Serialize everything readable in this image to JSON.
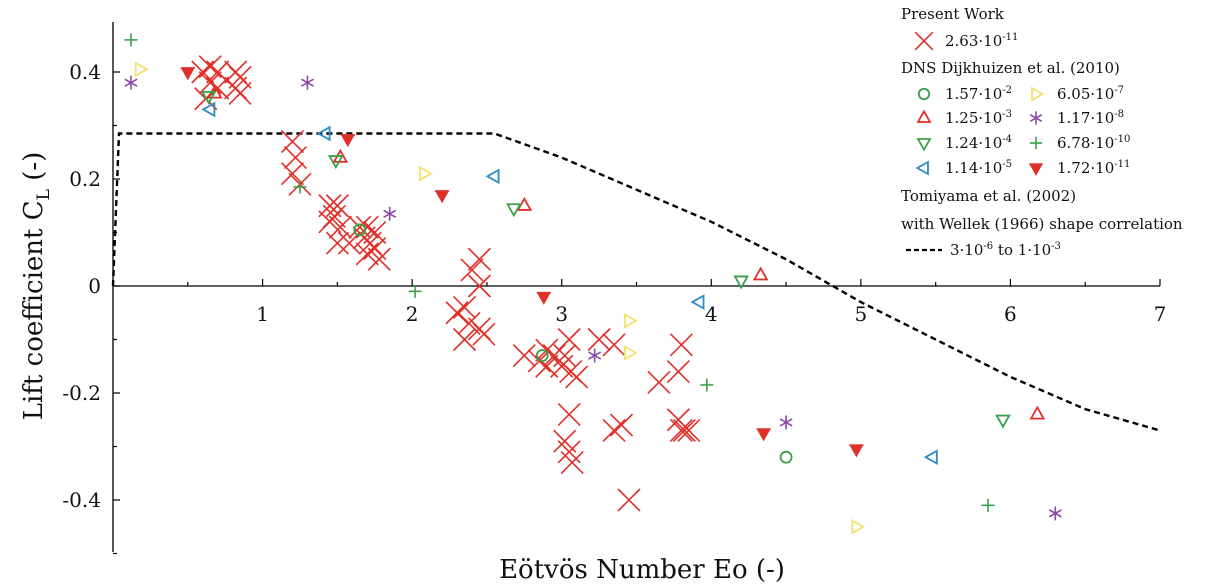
{
  "chart_data": {
    "type": "scatter",
    "xlabel": "Eötvös Number Eo (-)",
    "ylabel": "Lift coefficient C",
    "ylabel_subscript": "L",
    "ylabel_suffix": " (-)",
    "xlim": [
      0,
      7
    ],
    "ylim": [
      -0.5,
      0.5
    ],
    "x_ticks": [
      1,
      2,
      3,
      4,
      5,
      6,
      7
    ],
    "x_tick_labels": [
      "1",
      "2",
      "3",
      "4",
      "5",
      "6",
      "7"
    ],
    "y_ticks": [
      0.4,
      0.2,
      0,
      -0.2,
      -0.4
    ],
    "y_tick_labels": [
      "0.4",
      "0.2",
      "0",
      "-0.2",
      "-0.4"
    ],
    "grid": false,
    "legend_position": "top-right",
    "legend_groups": [
      {
        "title": "Present Work"
      },
      {
        "title": "DNS Dijkhuizen et al. (2010)"
      },
      {
        "title": "Tomiyama et al. (2002)",
        "subtitle": "with Wellek (1966) shape correlation"
      }
    ],
    "series": [
      {
        "name": "2.63·10",
        "exp": "-11",
        "group": 0,
        "marker": "x",
        "color": "#e0302a",
        "points": [
          [
            0.6,
            0.4
          ],
          [
            0.65,
            0.41
          ],
          [
            0.7,
            0.4
          ],
          [
            0.82,
            0.4
          ],
          [
            0.85,
            0.39
          ],
          [
            0.65,
            0.38
          ],
          [
            0.7,
            0.37
          ],
          [
            0.82,
            0.37
          ],
          [
            0.85,
            0.36
          ],
          [
            0.62,
            0.35
          ],
          [
            1.2,
            0.27
          ],
          [
            1.22,
            0.24
          ],
          [
            1.2,
            0.21
          ],
          [
            1.25,
            0.19
          ],
          [
            1.45,
            0.15
          ],
          [
            1.5,
            0.15
          ],
          [
            1.48,
            0.13
          ],
          [
            1.45,
            0.12
          ],
          [
            1.52,
            0.11
          ],
          [
            1.65,
            0.11
          ],
          [
            1.7,
            0.11
          ],
          [
            1.75,
            0.1
          ],
          [
            1.68,
            0.09
          ],
          [
            1.72,
            0.08
          ],
          [
            1.75,
            0.07
          ],
          [
            1.7,
            0.06
          ],
          [
            1.78,
            0.05
          ],
          [
            1.5,
            0.08
          ],
          [
            1.58,
            0.08
          ],
          [
            2.45,
            0.05
          ],
          [
            2.4,
            0.03
          ],
          [
            2.45,
            0.0
          ],
          [
            2.35,
            -0.04
          ],
          [
            2.3,
            -0.05
          ],
          [
            2.38,
            -0.07
          ],
          [
            2.45,
            -0.08
          ],
          [
            2.48,
            -0.09
          ],
          [
            2.35,
            -0.1
          ],
          [
            2.75,
            -0.13
          ],
          [
            2.85,
            -0.14
          ],
          [
            2.9,
            -0.15
          ],
          [
            2.95,
            -0.13
          ],
          [
            3.0,
            -0.15
          ],
          [
            3.05,
            -0.1
          ],
          [
            3.02,
            -0.13
          ],
          [
            3.06,
            -0.16
          ],
          [
            3.1,
            -0.17
          ],
          [
            2.9,
            -0.12
          ],
          [
            3.05,
            -0.24
          ],
          [
            3.02,
            -0.29
          ],
          [
            3.05,
            -0.31
          ],
          [
            3.07,
            -0.33
          ],
          [
            3.25,
            -0.1
          ],
          [
            3.35,
            -0.11
          ],
          [
            3.35,
            -0.27
          ],
          [
            3.4,
            -0.26
          ],
          [
            3.45,
            -0.4
          ],
          [
            3.65,
            -0.18
          ],
          [
            3.78,
            -0.16
          ],
          [
            3.8,
            -0.11
          ],
          [
            3.78,
            -0.25
          ],
          [
            3.82,
            -0.27
          ],
          [
            3.8,
            -0.27
          ],
          [
            3.85,
            -0.27
          ]
        ]
      },
      {
        "name": "1.57·10",
        "exp": "-2",
        "group": 1,
        "marker": "circle",
        "color": "#3aa04a",
        "points": [
          [
            1.65,
            0.105
          ],
          [
            2.87,
            -0.13
          ],
          [
            4.5,
            -0.32
          ]
        ]
      },
      {
        "name": "1.25·10",
        "exp": "-3",
        "group": 1,
        "marker": "triangle-up",
        "color": "#e0302a",
        "points": [
          [
            0.68,
            0.36
          ],
          [
            1.52,
            0.24
          ],
          [
            2.75,
            0.15
          ],
          [
            4.33,
            0.02
          ],
          [
            6.18,
            -0.24
          ]
        ]
      },
      {
        "name": "1.24·10",
        "exp": "-4",
        "group": 1,
        "marker": "triangle-down",
        "color": "#3aa04a",
        "points": [
          [
            0.64,
            0.355
          ],
          [
            1.49,
            0.235
          ],
          [
            2.68,
            0.145
          ],
          [
            4.2,
            0.01
          ],
          [
            5.95,
            -0.25
          ]
        ]
      },
      {
        "name": "1.14·10",
        "exp": "-5",
        "group": 1,
        "marker": "triangle-left",
        "color": "#2b8cc8",
        "points": [
          [
            0.65,
            0.33
          ],
          [
            1.42,
            0.285
          ],
          [
            2.55,
            0.205
          ],
          [
            3.92,
            -0.03
          ],
          [
            5.48,
            -0.32
          ]
        ]
      },
      {
        "name": "6.05·10",
        "exp": "-7",
        "group": 1,
        "marker": "triangle-right",
        "color": "#f5e070",
        "points": [
          [
            0.18,
            0.405
          ],
          [
            2.08,
            0.21
          ],
          [
            3.45,
            -0.065
          ],
          [
            3.45,
            -0.125
          ],
          [
            4.97,
            -0.45
          ]
        ]
      },
      {
        "name": "1.17·10",
        "exp": "-8",
        "group": 1,
        "marker": "asterisk",
        "color": "#8a4aa8",
        "points": [
          [
            0.12,
            0.38
          ],
          [
            1.3,
            0.38
          ],
          [
            1.85,
            0.135
          ],
          [
            3.22,
            -0.13
          ],
          [
            4.5,
            -0.255
          ],
          [
            6.3,
            -0.425
          ]
        ]
      },
      {
        "name": "6.78·10",
        "exp": "-10",
        "group": 1,
        "marker": "plus",
        "color": "#3aa04a",
        "points": [
          [
            0.12,
            0.46
          ],
          [
            1.25,
            0.185
          ],
          [
            2.02,
            -0.01
          ],
          [
            3.97,
            -0.185
          ],
          [
            5.85,
            -0.41
          ]
        ]
      },
      {
        "name": "1.72·10",
        "exp": "-11",
        "group": 1,
        "marker": "triangle-down-filled",
        "color": "#e0302a",
        "points": [
          [
            0.5,
            0.4
          ],
          [
            1.57,
            0.275
          ],
          [
            2.2,
            0.17
          ],
          [
            2.88,
            -0.02
          ],
          [
            4.35,
            -0.275
          ],
          [
            4.97,
            -0.305
          ]
        ]
      },
      {
        "name": "3·10",
        "exp": "-6",
        "name_suffix": " to 1·10",
        "exp2": "-3",
        "group": 2,
        "marker": "dashed-line",
        "color": "#000000",
        "points": [
          [
            0,
            0.0
          ],
          [
            0.04,
            0.285
          ],
          [
            1.0,
            0.285
          ],
          [
            2.0,
            0.285
          ],
          [
            2.55,
            0.285
          ],
          [
            3.0,
            0.24
          ],
          [
            3.5,
            0.18
          ],
          [
            4.0,
            0.12
          ],
          [
            4.5,
            0.05
          ],
          [
            5.0,
            -0.03
          ],
          [
            5.5,
            -0.1
          ],
          [
            6.0,
            -0.17
          ],
          [
            6.5,
            -0.23
          ],
          [
            7.0,
            -0.27
          ]
        ]
      }
    ]
  }
}
